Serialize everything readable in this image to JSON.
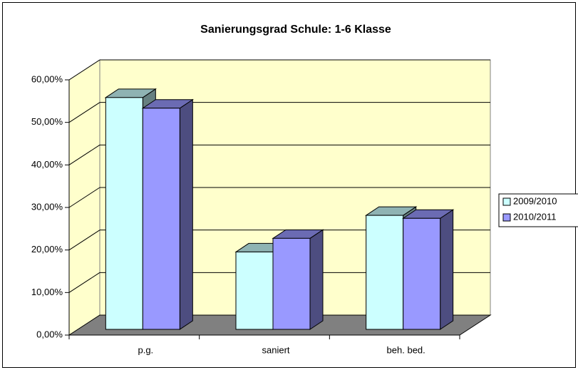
{
  "chart_data": {
    "type": "bar3d",
    "title": "Sanierungsgrad Schule: 1-6 Klasse",
    "categories": [
      "p.g.",
      "saniert",
      "beh. bed."
    ],
    "series": [
      {
        "name": "2009/2010",
        "color": "#ccffff",
        "values": [
          54.5,
          18.2,
          26.8
        ]
      },
      {
        "name": "2010/2011",
        "color": "#9999ff",
        "values": [
          52.0,
          21.4,
          26.1
        ]
      }
    ],
    "ylim": [
      0,
      60
    ],
    "yticks": [
      {
        "value": 0,
        "label": "0,00%"
      },
      {
        "value": 10,
        "label": "10,00%"
      },
      {
        "value": 20,
        "label": "20,00%"
      },
      {
        "value": 30,
        "label": "30,00%"
      },
      {
        "value": 40,
        "label": "40,00%"
      },
      {
        "value": 50,
        "label": "50,00%"
      },
      {
        "value": 60,
        "label": "60,00%"
      }
    ],
    "grid": true,
    "legend": "right"
  }
}
